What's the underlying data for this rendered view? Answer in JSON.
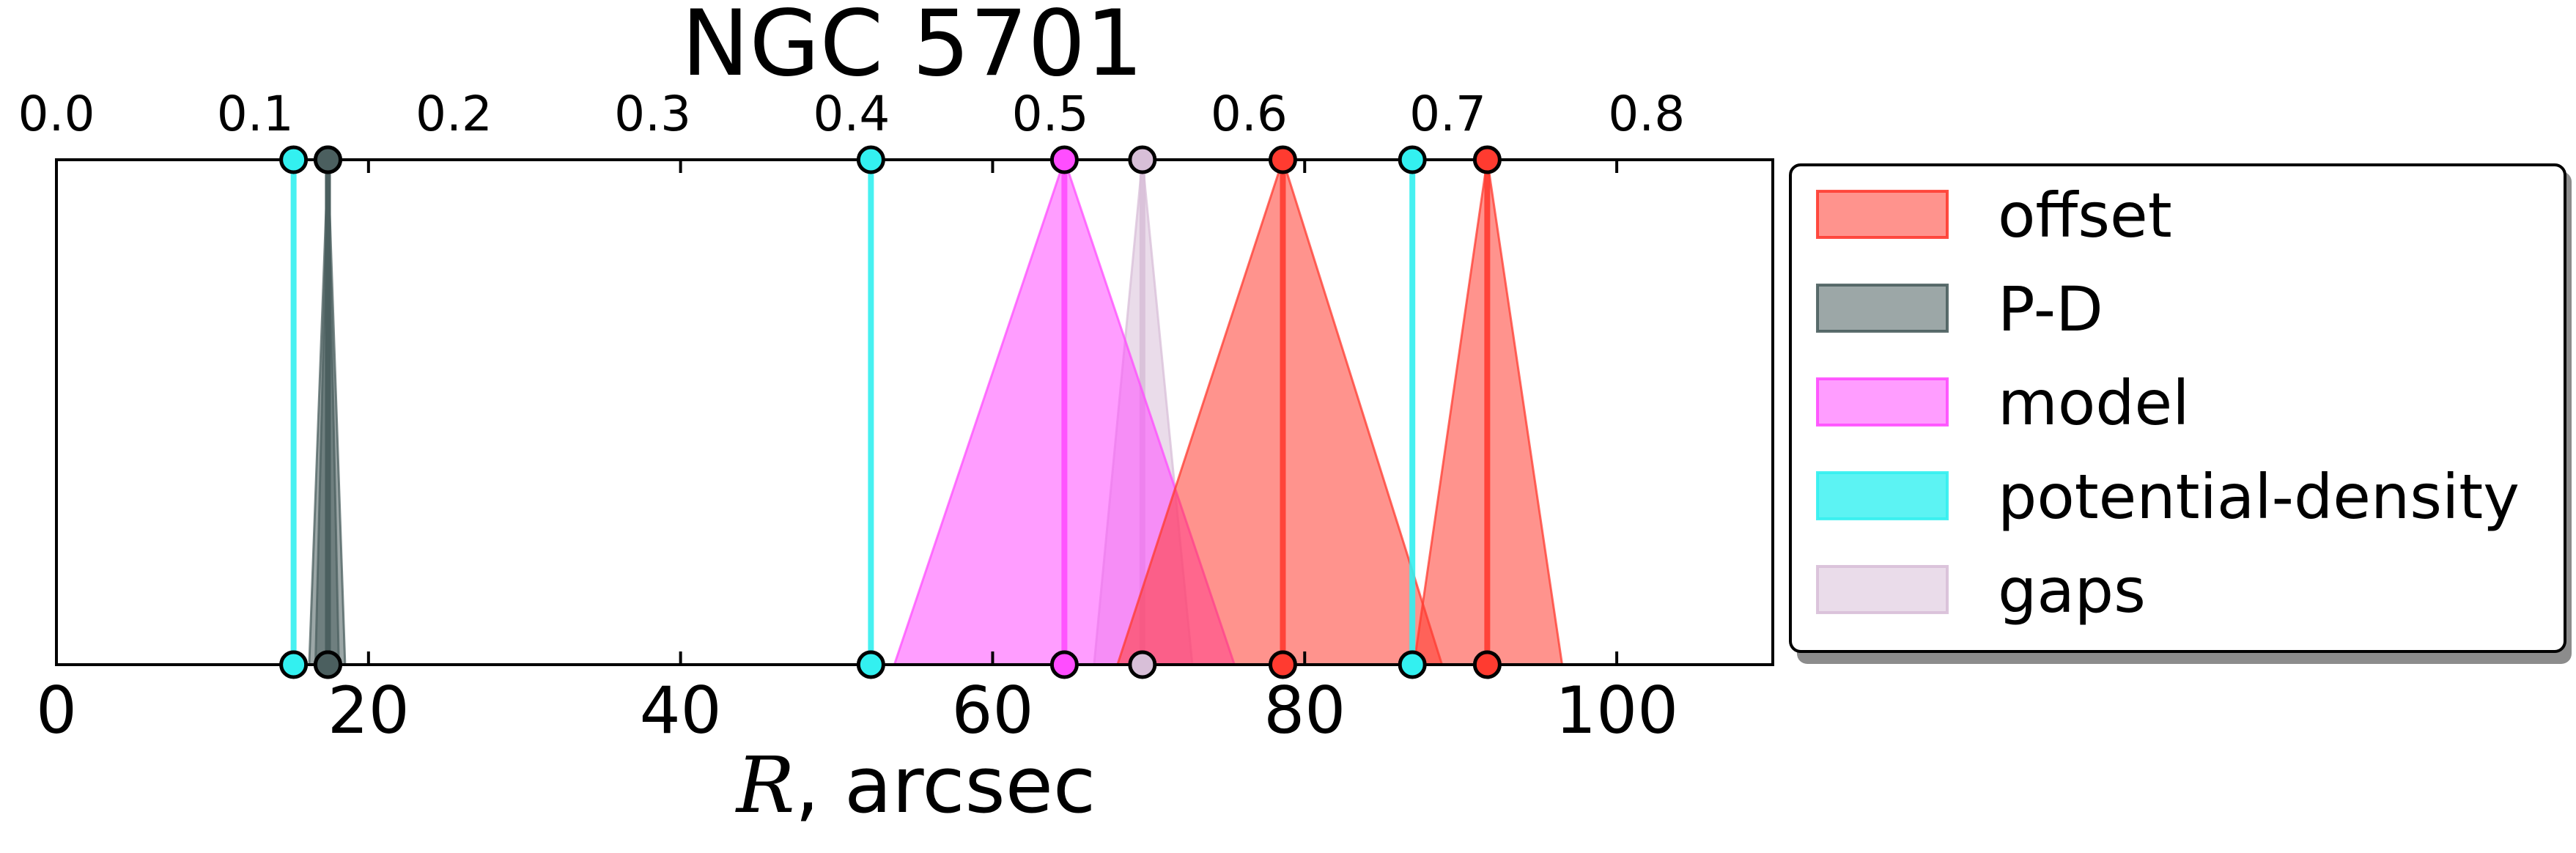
{
  "chart_data": {
    "type": "area",
    "title": "NGC 5701",
    "xlabel_symbol": "R",
    "xlabel_unit": ", arcsec",
    "xlim": [
      0,
      110
    ],
    "x_ticks": [
      0,
      20,
      40,
      60,
      80,
      100
    ],
    "top_axis": {
      "scale": 0.00785,
      "ticks": [
        "0.0",
        "0.1",
        "0.2",
        "0.3",
        "0.4",
        "0.5",
        "0.6",
        "0.7",
        "0.8"
      ]
    },
    "grid": false,
    "legend_position": "outside-right",
    "series": [
      {
        "name": "offset",
        "color": "#ff3b30",
        "fill_opacity": 0.55,
        "markers": [
          {
            "center": 78.6,
            "low": 68.0,
            "high": 88.8
          },
          {
            "center": 91.7,
            "low": 87.0,
            "high": 96.5
          }
        ]
      },
      {
        "name": "P-D",
        "color": "#4b5f5f",
        "fill_opacity": 0.55,
        "markers": [
          {
            "center": 17.4,
            "low": 16.2,
            "high": 18.5
          },
          {
            "center": 17.4,
            "low": 16.6,
            "high": 18.1
          }
        ]
      },
      {
        "name": "model",
        "color": "#ff4dff",
        "fill_opacity": 0.55,
        "markers": [
          {
            "center": 64.6,
            "low": 53.7,
            "high": 75.5
          }
        ]
      },
      {
        "name": "potential-density",
        "color": "#33f0f0",
        "fill_opacity": 0.8,
        "markers": [
          {
            "center": 15.2,
            "low": 15.2,
            "high": 15.2
          },
          {
            "center": 52.2,
            "low": 52.2,
            "high": 52.2
          },
          {
            "center": 86.9,
            "low": 86.9,
            "high": 86.9
          }
        ]
      },
      {
        "name": "gaps",
        "color": "#d8bfd8",
        "fill_opacity": 0.55,
        "markers": [
          {
            "center": 69.6,
            "low": 66.5,
            "high": 72.8
          }
        ]
      }
    ]
  }
}
